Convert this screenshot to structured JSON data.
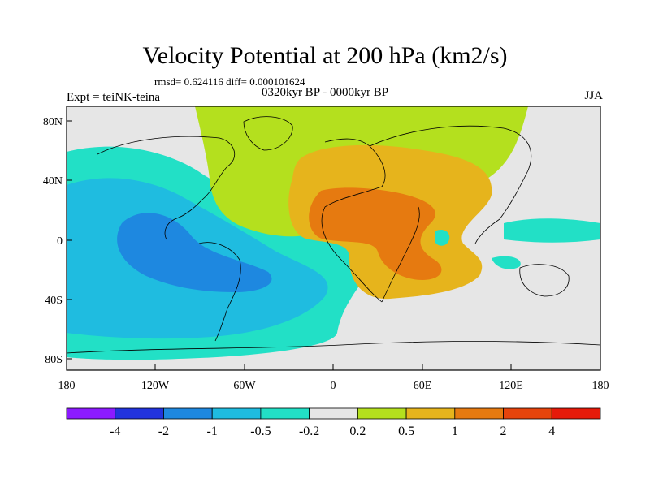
{
  "header": {
    "title": "Velocity Potential at 200 hPa (km2/s)",
    "stats": "rmsd= 0.624116 diff= 0.000101624",
    "period": "0320kyr BP - 0000kyr BP",
    "experiment": "Expt = teiNK-teina",
    "season": "JJA"
  },
  "axes": {
    "y_ticks": [
      "80N",
      "40N",
      "0",
      "40S",
      "80S"
    ],
    "x_ticks": [
      "180",
      "120W",
      "60W",
      "0",
      "60E",
      "120E",
      "180"
    ]
  },
  "colorbar": {
    "labels": [
      "-4",
      "-2",
      "-1",
      "-0.5",
      "-0.2",
      "0.2",
      "0.5",
      "1",
      "2",
      "4"
    ],
    "colors": [
      "#8c1aff",
      "#2233dd",
      "#1e88e0",
      "#1fbce0",
      "#22e0c6",
      "#e6e6e6",
      "#b4e01e",
      "#e6b41c",
      "#e67a10",
      "#e6440c",
      "#e61a0a"
    ]
  }
}
